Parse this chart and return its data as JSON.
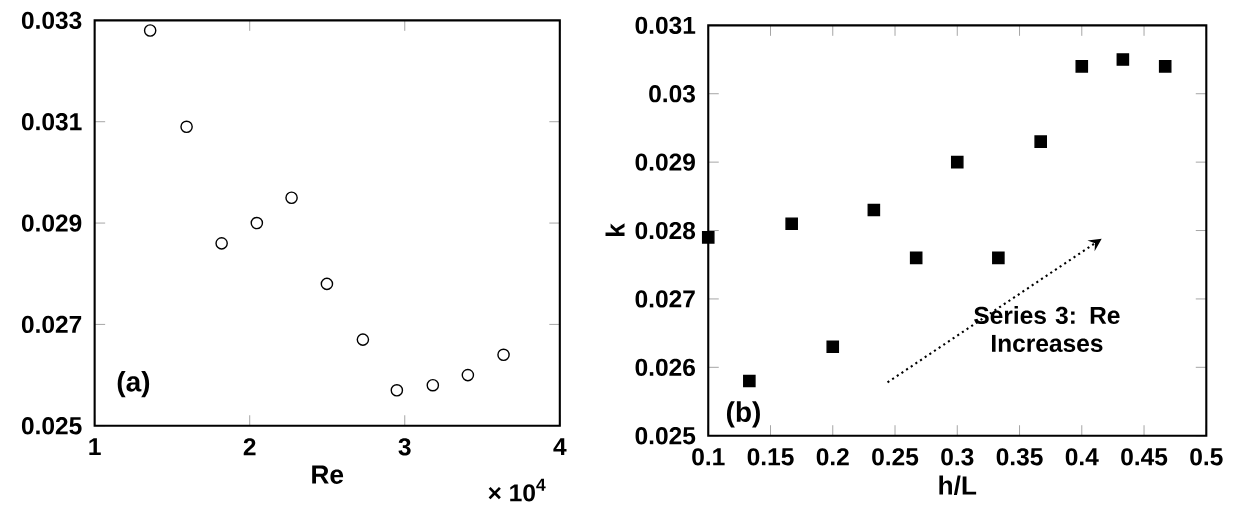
{
  "chart_data": [
    {
      "type": "scatter",
      "xlabel": "Re",
      "marker": "circle",
      "color": "#000000",
      "x": [
        1.358,
        1.593,
        1.819,
        2.046,
        2.27,
        2.498,
        2.73,
        2.949,
        3.181,
        3.407,
        3.637
      ],
      "values": [
        0.0328,
        0.0309,
        0.0286,
        0.029,
        0.0295,
        0.0278,
        0.0267,
        0.0257,
        0.0258,
        0.026,
        0.0264
      ],
      "xlim": [
        1,
        4
      ],
      "xticks": [
        1,
        2,
        3,
        4
      ],
      "ylim": [
        0.025,
        0.033
      ],
      "yticks": [
        0.025,
        0.027,
        0.029,
        0.031,
        0.033
      ],
      "annotations": [
        "(a)",
        "× 10$^{4}$"
      ]
    },
    {
      "type": "scatter",
      "xlabel": "h/L",
      "ylabel": "k",
      "marker": "square",
      "color": "#000000",
      "x": [
        0.1,
        0.133,
        0.167,
        0.2,
        0.233,
        0.267,
        0.3,
        0.333,
        0.367,
        0.4,
        0.433,
        0.467
      ],
      "values": [
        0.0279,
        0.0258,
        0.0281,
        0.0263,
        0.0283,
        0.0276,
        0.029,
        0.0276,
        0.0293,
        0.0304,
        0.0305,
        0.0304
      ],
      "xlim": [
        0.1,
        0.5
      ],
      "xticks": [
        0.1,
        0.15,
        0.2,
        0.25,
        0.3,
        0.35,
        0.4,
        0.45,
        0.5
      ],
      "ylim": [
        0.025,
        0.031
      ],
      "yticks": [
        0.025,
        0.026,
        0.027,
        0.028,
        0.029,
        0.03,
        0.031
      ],
      "annotations": [
        "(b)",
        "Series 3: Re Increases"
      ]
    }
  ]
}
